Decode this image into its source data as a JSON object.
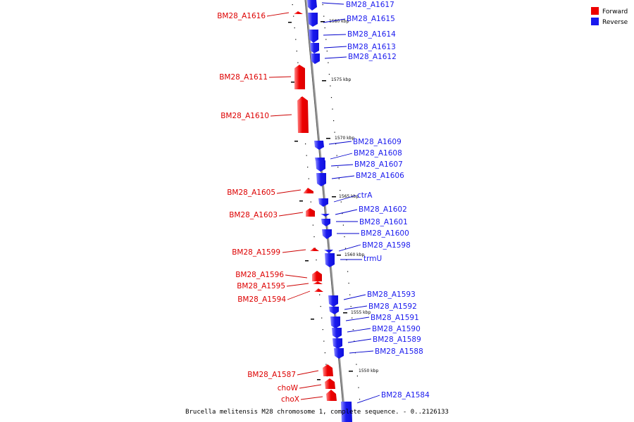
{
  "colors": {
    "forward": "#ee0000",
    "forward_light": "#ff7777",
    "reverse": "#1a1aee",
    "reverse_light": "#7777ff",
    "backbone": "#999999",
    "leader_forward": "#cc0000",
    "leader_reverse": "#0000cc"
  },
  "legend": {
    "forward_label": "Forward",
    "reverse_label": "Reverse"
  },
  "caption": "Brucella melitensis M28 chromosome 1, complete sequence. - 0..2126133",
  "kbp_labels": [
    "1580 kbp",
    "1575 kbp",
    "1570 kbp",
    "1565 kbp",
    "1560 kbp",
    "1555 kbp",
    "1550 kbp"
  ],
  "genes": [
    {
      "name": "BM28_A1617",
      "strand": "reverse"
    },
    {
      "name": "BM28_A1616",
      "strand": "forward"
    },
    {
      "name": "BM28_A1615",
      "strand": "reverse"
    },
    {
      "name": "BM28_A1614",
      "strand": "reverse"
    },
    {
      "name": "BM28_A1613",
      "strand": "reverse"
    },
    {
      "name": "BM28_A1612",
      "strand": "reverse"
    },
    {
      "name": "BM28_A1611",
      "strand": "forward"
    },
    {
      "name": "BM28_A1610",
      "strand": "forward"
    },
    {
      "name": "BM28_A1609",
      "strand": "reverse"
    },
    {
      "name": "BM28_A1608",
      "strand": "reverse"
    },
    {
      "name": "BM28_A1607",
      "strand": "reverse"
    },
    {
      "name": "BM28_A1606",
      "strand": "reverse"
    },
    {
      "name": "BM28_A1605",
      "strand": "forward"
    },
    {
      "name": "ctrA",
      "strand": "reverse"
    },
    {
      "name": "BM28_A1603",
      "strand": "forward"
    },
    {
      "name": "BM28_A1602",
      "strand": "reverse"
    },
    {
      "name": "BM28_A1601",
      "strand": "reverse"
    },
    {
      "name": "BM28_A1600",
      "strand": "reverse"
    },
    {
      "name": "BM28_A1599",
      "strand": "forward"
    },
    {
      "name": "BM28_A1598",
      "strand": "reverse"
    },
    {
      "name": "trmU",
      "strand": "reverse"
    },
    {
      "name": "BM28_A1596",
      "strand": "forward"
    },
    {
      "name": "BM28_A1595",
      "strand": "forward"
    },
    {
      "name": "BM28_A1594",
      "strand": "forward"
    },
    {
      "name": "BM28_A1593",
      "strand": "reverse"
    },
    {
      "name": "BM28_A1592",
      "strand": "reverse"
    },
    {
      "name": "BM28_A1591",
      "strand": "reverse"
    },
    {
      "name": "BM28_A1590",
      "strand": "reverse"
    },
    {
      "name": "BM28_A1589",
      "strand": "reverse"
    },
    {
      "name": "BM28_A1588",
      "strand": "reverse"
    },
    {
      "name": "BM28_A1587",
      "strand": "forward"
    },
    {
      "name": "choW",
      "strand": "forward"
    },
    {
      "name": "choX",
      "strand": "forward"
    },
    {
      "name": "BM28_A1584",
      "strand": "reverse"
    }
  ]
}
